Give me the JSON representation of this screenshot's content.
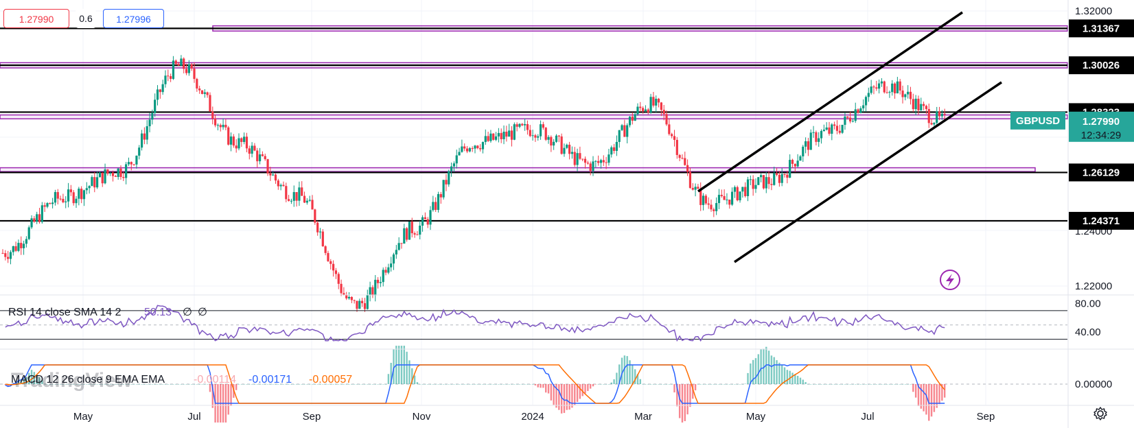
{
  "quote": {
    "bid": "1.27990",
    "spread": "0.6",
    "ask": "1.27996"
  },
  "symbol": {
    "name": "GBPUSD",
    "price": "1.27990",
    "countdown": "12:34:29"
  },
  "price_axis": {
    "ticks": [
      "1.32000",
      "1.24000",
      "1.22000"
    ]
  },
  "levels": [
    {
      "label": "1.31367",
      "value": 1.31367
    },
    {
      "label": "1.30026",
      "value": 1.30026
    },
    {
      "label": "1.28323",
      "value": 1.28323
    },
    {
      "label": "1.26129",
      "value": 1.26129
    },
    {
      "label": "1.24371",
      "value": 1.24371
    }
  ],
  "time_axis": [
    "May",
    "Jul",
    "Sep",
    "Nov",
    "2024",
    "Mar",
    "May",
    "Jul",
    "Sep"
  ],
  "rsi": {
    "legend": "RSI 14 close SMA 14 2",
    "value": "50.13",
    "extra1": "∅",
    "extra2": "∅",
    "ticks": [
      "80.00",
      "40.00"
    ],
    "upper": 70,
    "lower": 30
  },
  "macd": {
    "legend": "MACD 12 26 close 9 EMA EMA",
    "hist": "-0.00114",
    "macd": "-0.00171",
    "signal": "-0.00057",
    "ticks": [
      "0.00000"
    ]
  },
  "watermark": "TradingView",
  "colors": {
    "up": "#089981",
    "down": "#f23645",
    "level": "#000000",
    "zone": "#9c27b0",
    "rsi": "#7e57c2",
    "macd": "#2962ff",
    "signal": "#ff6d00",
    "tag": "#26a69a"
  },
  "chart_data": {
    "type": "line",
    "symbol": "GBPUSD",
    "x": [
      "2023-04",
      "2023-05",
      "2023-06",
      "2023-07",
      "2023-08",
      "2023-09",
      "2023-10",
      "2023-11",
      "2023-12",
      "2024-01",
      "2024-02",
      "2024-03",
      "2024-04",
      "2024-05",
      "2024-06",
      "2024-07",
      "2024-08"
    ],
    "series": [
      {
        "values": [
          1.232,
          1.252,
          1.262,
          1.3,
          1.272,
          1.253,
          1.213,
          1.241,
          1.272,
          1.277,
          1.264,
          1.286,
          1.25,
          1.258,
          1.276,
          1.293,
          1.28
        ]
      }
    ],
    "ylim": [
      1.215,
      1.322
    ],
    "horizontal_levels": [
      1.31367,
      1.30026,
      1.28323,
      1.26129,
      1.24371
    ],
    "rsi_range": [
      20,
      90
    ],
    "macd_range": [
      -0.006,
      0.006
    ]
  }
}
